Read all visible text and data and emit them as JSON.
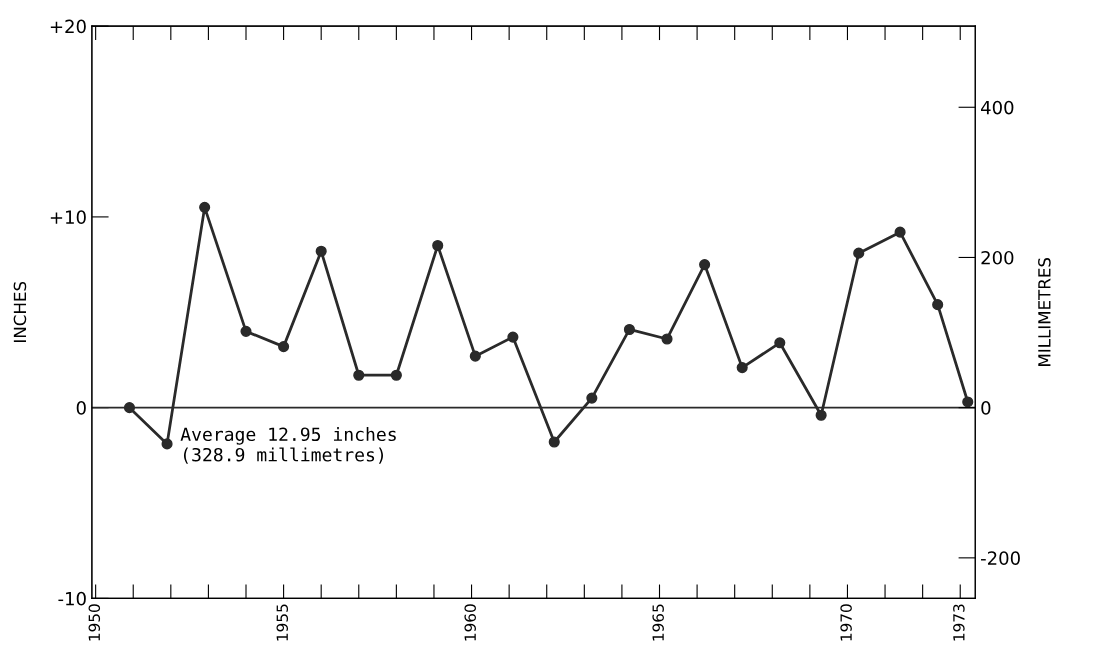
{
  "chart_data": {
    "type": "line",
    "ylabel": "INCHES",
    "y2label": "MILLIMETRES",
    "x": [
      1950.9,
      1951.9,
      1952.9,
      1954.0,
      1955.0,
      1956.0,
      1957.0,
      1958.0,
      1959.1,
      1960.1,
      1961.1,
      1962.2,
      1963.2,
      1964.2,
      1965.2,
      1966.2,
      1967.2,
      1968.2,
      1969.3,
      1970.3,
      1971.4,
      1972.4,
      1973.2
    ],
    "series": [
      {
        "color": "#2a2a2a",
        "values": [
          0,
          -1.9,
          10.5,
          4.0,
          3.2,
          8.2,
          1.7,
          1.7,
          8.5,
          2.7,
          3.7,
          -1.8,
          0.5,
          4.1,
          3.6,
          7.5,
          2.1,
          3.4,
          -0.4,
          8.1,
          9.2,
          5.4,
          0.3
        ]
      }
    ],
    "xlim": [
      1949.9,
      1973.4
    ],
    "xticks": [
      1950,
      {
        "value": 1951,
        "label": null
      },
      {
        "value": 1952,
        "label": null
      },
      {
        "value": 1953,
        "label": null
      },
      {
        "value": 1954,
        "label": null
      },
      1955,
      {
        "value": 1956,
        "label": null
      },
      {
        "value": 1957,
        "label": null
      },
      {
        "value": 1958,
        "label": null
      },
      {
        "value": 1959,
        "label": null
      },
      1960,
      {
        "value": 1961,
        "label": null
      },
      {
        "value": 1962,
        "label": null
      },
      {
        "value": 1963,
        "label": null
      },
      {
        "value": 1964,
        "label": null
      },
      1965,
      {
        "value": 1966,
        "label": null
      },
      {
        "value": 1967,
        "label": null
      },
      {
        "value": 1968,
        "label": null
      },
      {
        "value": 1969,
        "label": null
      },
      1970,
      {
        "value": 1971,
        "label": null
      },
      {
        "value": 1972,
        "label": null
      },
      1973
    ],
    "ylim": [
      -10,
      20
    ],
    "yticks": [
      {
        "value": -10,
        "label": "-10"
      },
      0,
      {
        "value": 10,
        "label": "+10"
      },
      {
        "value": 20,
        "label": "+20"
      }
    ],
    "y2lim": [
      -254,
      508
    ],
    "y2ticks": [
      -200,
      0,
      200,
      400
    ],
    "ref_lines": [
      {
        "axis": "y",
        "value": 0,
        "label": "Average 12.95 inches\n(328.9 millimetres)",
        "color": "#2a2a2a"
      }
    ],
    "marker": "circle",
    "line_style": "solid",
    "grid": false,
    "legend": false
  }
}
